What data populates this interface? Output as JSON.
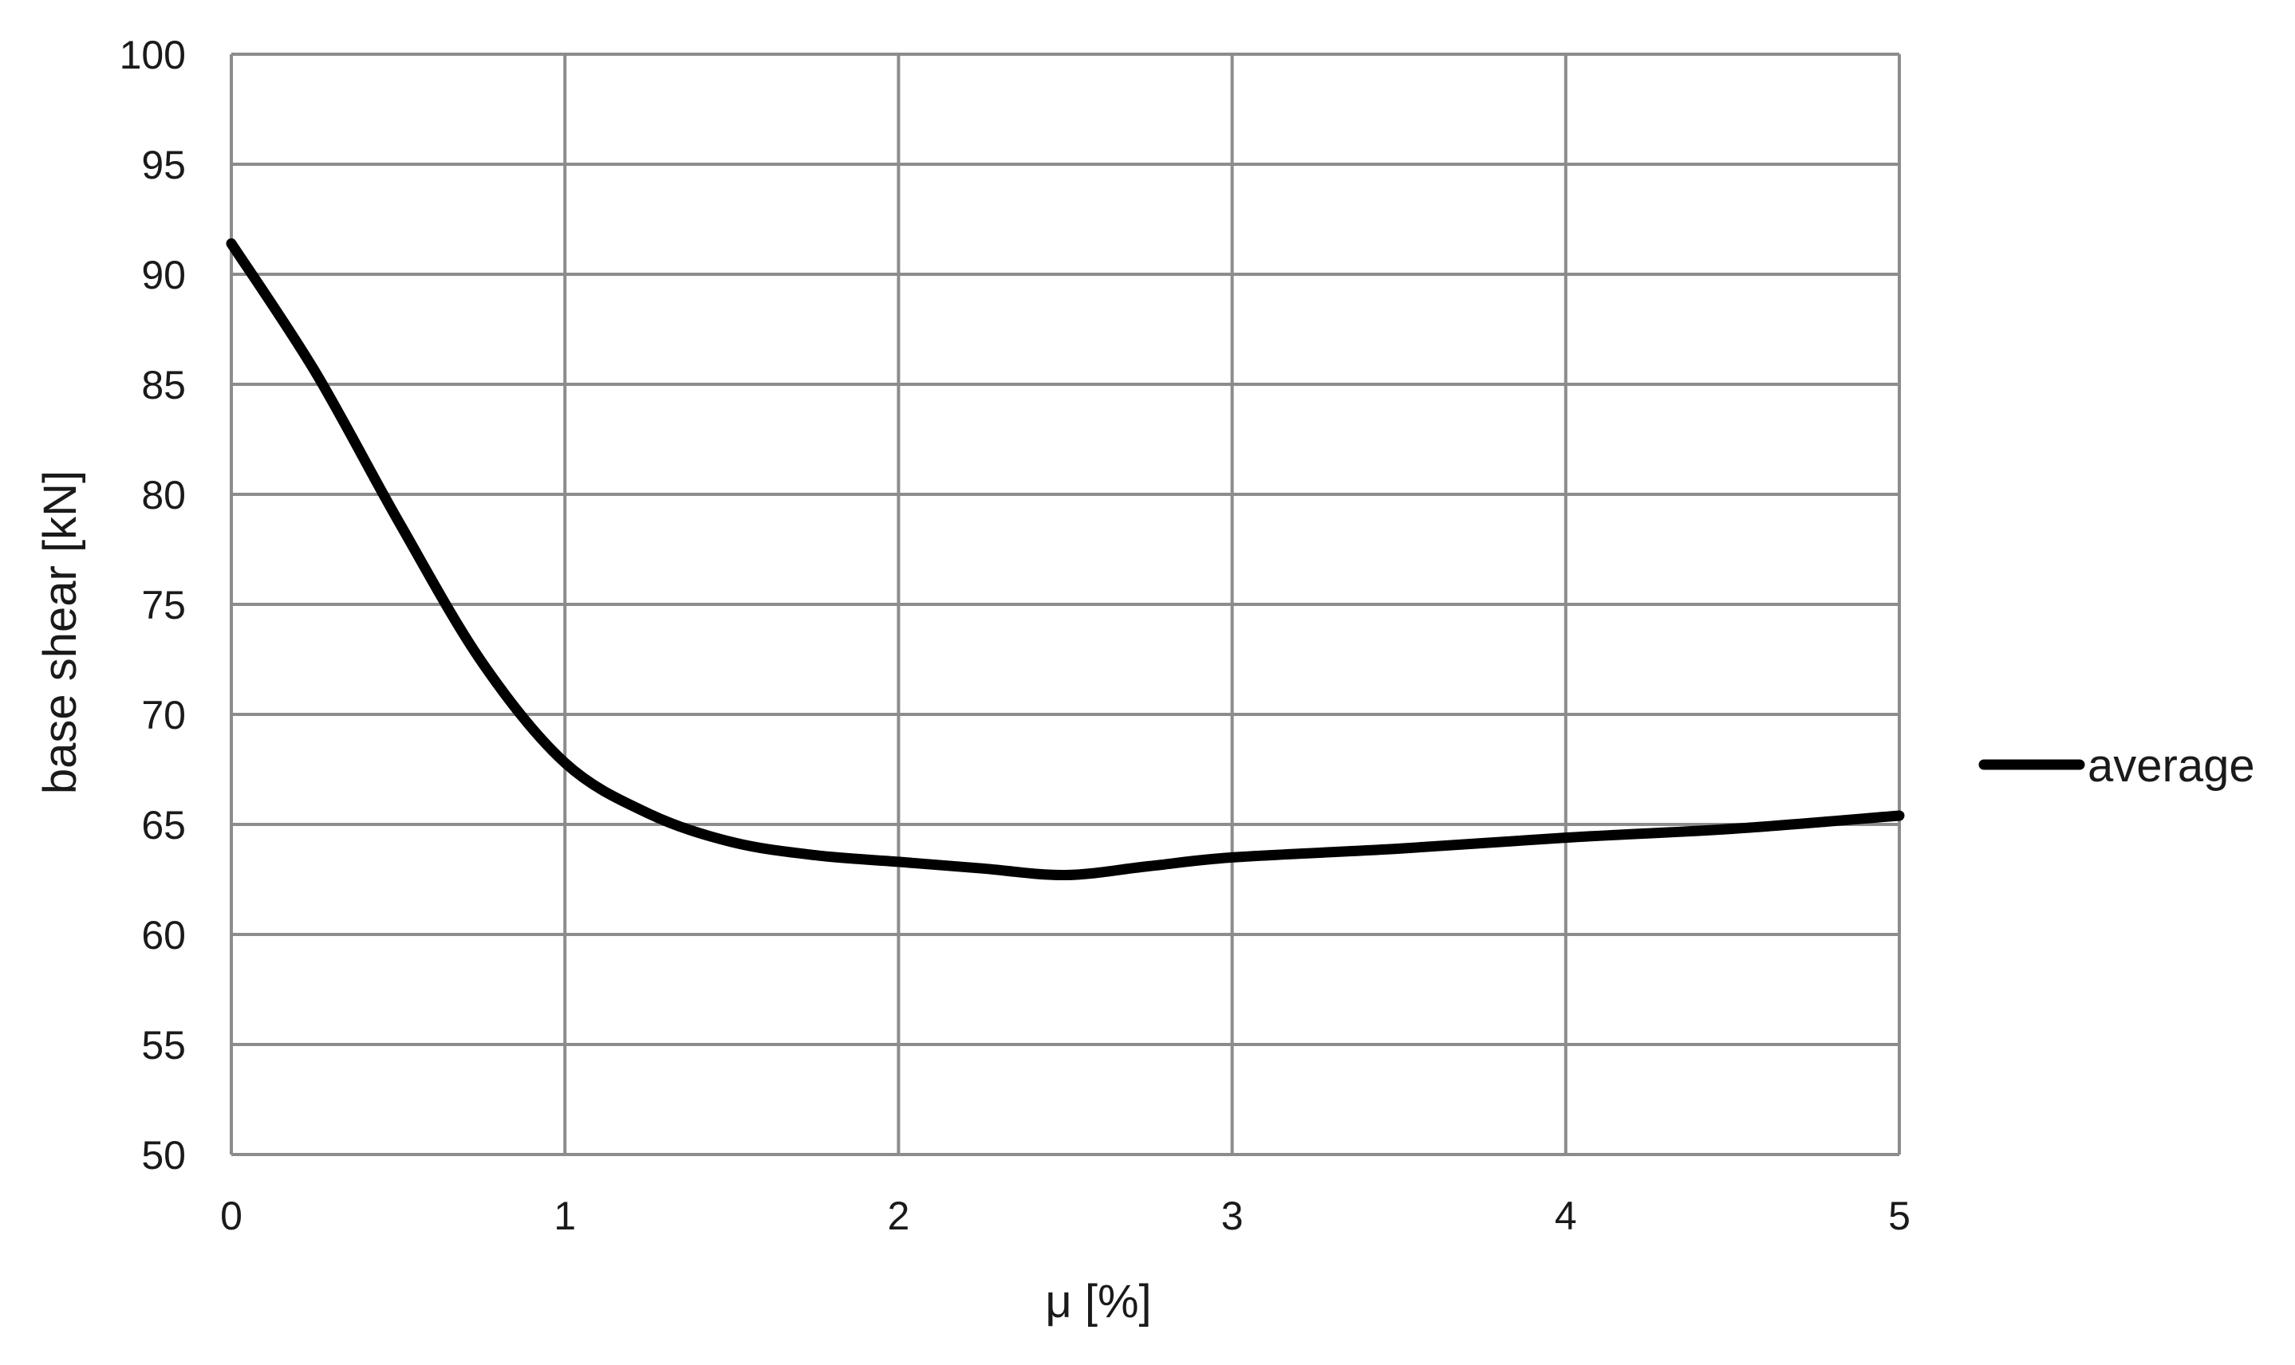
{
  "chart_data": {
    "type": "line",
    "title": "",
    "xlabel": "μ [%]",
    "ylabel": "base shear [kN]",
    "xlim": [
      0,
      5
    ],
    "ylim": [
      50,
      100
    ],
    "xticks": [
      0,
      1,
      2,
      3,
      4,
      5
    ],
    "yticks": [
      50,
      55,
      60,
      65,
      70,
      75,
      80,
      85,
      90,
      95,
      100
    ],
    "grid": true,
    "legend_position": "right",
    "series": [
      {
        "name": "average",
        "color": "#000000",
        "x": [
          0,
          0.25,
          0.5,
          0.75,
          1.0,
          1.25,
          1.5,
          1.75,
          2.0,
          2.25,
          2.5,
          2.75,
          3.0,
          3.5,
          4.0,
          4.5,
          5.0
        ],
        "y": [
          91.4,
          85.6,
          78.8,
          72.4,
          67.8,
          65.5,
          64.2,
          63.6,
          63.3,
          63.0,
          62.7,
          63.1,
          63.5,
          63.9,
          64.4,
          64.8,
          65.4
        ]
      }
    ]
  }
}
